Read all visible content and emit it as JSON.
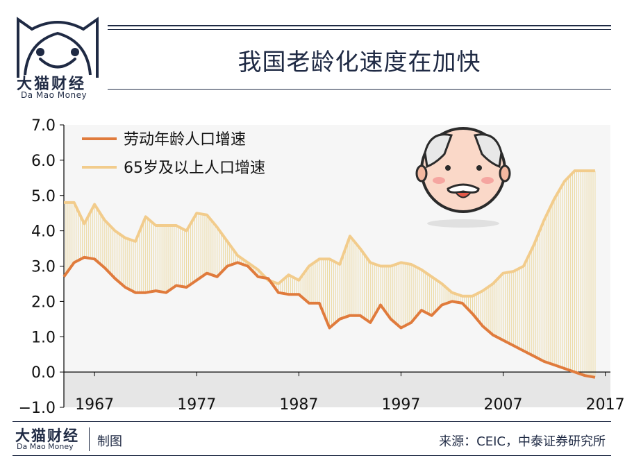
{
  "brand": {
    "name": "大猫财经",
    "sub": "Da Mao Money"
  },
  "title": "我国老龄化速度在加快",
  "footer": {
    "brand": "大猫财经",
    "brand_sub": "Da Mao Money",
    "credit": "制图",
    "source": "来源：CEIC，中泰证券研究所"
  },
  "colors": {
    "labor": "#e07b3c",
    "elderly": "#f2cc8c",
    "navy": "#1f2a44",
    "fill": "#ecd9a0"
  },
  "chart_data": {
    "type": "line",
    "xlim": [
      1964,
      2017.5
    ],
    "ylim": [
      -1.0,
      7.0
    ],
    "x_ticks": [
      1967,
      1977,
      1987,
      1997,
      2007,
      2017
    ],
    "y_ticks": [
      "7.0",
      "6.0",
      "5.0",
      "4.0",
      "3.0",
      "2.0",
      "1.0",
      "0.0",
      "-1.0"
    ],
    "series": [
      {
        "name": "劳动年龄人口增速",
        "x": [
          1964,
          1965,
          1966,
          1967,
          1968,
          1969,
          1970,
          1971,
          1972,
          1973,
          1974,
          1975,
          1976,
          1977,
          1978,
          1979,
          1980,
          1981,
          1982,
          1983,
          1984,
          1985,
          1986,
          1987,
          1988,
          1989,
          1990,
          1991,
          1992,
          1993,
          1994,
          1995,
          1996,
          1997,
          1998,
          1999,
          2000,
          2001,
          2002,
          2003,
          2004,
          2005,
          2006,
          2007,
          2008,
          2009,
          2010,
          2011,
          2012,
          2013,
          2014,
          2015,
          2016
        ],
        "values": [
          2.7,
          3.1,
          3.25,
          3.2,
          2.95,
          2.65,
          2.4,
          2.25,
          2.25,
          2.3,
          2.25,
          2.45,
          2.4,
          2.6,
          2.8,
          2.7,
          3.0,
          3.1,
          3.0,
          2.7,
          2.65,
          2.25,
          2.2,
          2.2,
          1.95,
          1.95,
          1.25,
          1.5,
          1.6,
          1.6,
          1.4,
          1.9,
          1.5,
          1.25,
          1.4,
          1.75,
          1.6,
          1.9,
          2.0,
          1.95,
          1.65,
          1.3,
          1.05,
          0.9,
          0.75,
          0.6,
          0.45,
          0.3,
          0.2,
          0.1,
          0.0,
          -0.1,
          -0.15
        ]
      },
      {
        "name": "65岁及以上人口增速",
        "x": [
          1964,
          1965,
          1966,
          1967,
          1968,
          1969,
          1970,
          1971,
          1972,
          1973,
          1974,
          1975,
          1976,
          1977,
          1978,
          1979,
          1980,
          1981,
          1982,
          1983,
          1984,
          1985,
          1986,
          1987,
          1988,
          1989,
          1990,
          1991,
          1992,
          1993,
          1994,
          1995,
          1996,
          1997,
          1998,
          1999,
          2000,
          2001,
          2002,
          2003,
          2004,
          2005,
          2006,
          2007,
          2008,
          2009,
          2010,
          2011,
          2012,
          2013,
          2014,
          2015,
          2016
        ],
        "values": [
          4.8,
          4.8,
          4.2,
          4.75,
          4.3,
          4.0,
          3.8,
          3.7,
          4.4,
          4.15,
          4.15,
          4.15,
          4.0,
          4.5,
          4.45,
          4.1,
          3.7,
          3.3,
          3.1,
          2.9,
          2.6,
          2.5,
          2.75,
          2.6,
          3.0,
          3.2,
          3.2,
          3.05,
          3.85,
          3.5,
          3.1,
          3.0,
          3.0,
          3.1,
          3.05,
          2.9,
          2.7,
          2.5,
          2.25,
          2.15,
          2.15,
          2.3,
          2.5,
          2.8,
          2.85,
          3.0,
          3.6,
          4.3,
          4.9,
          5.4,
          5.7,
          5.7,
          5.7
        ]
      }
    ],
    "legend": "top-left",
    "grid": false
  }
}
